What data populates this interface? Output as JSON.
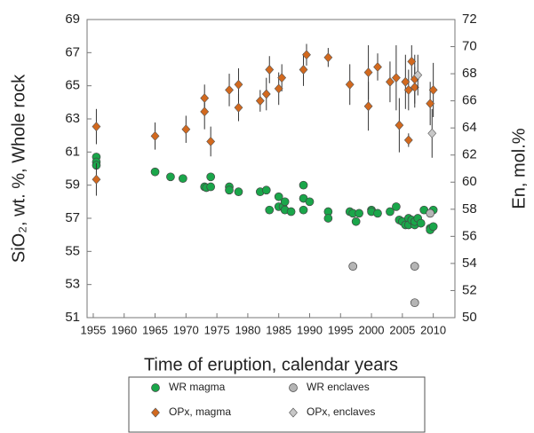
{
  "chart_data": {
    "type": "scatter",
    "x_label": "Time of eruption, calendar years",
    "y_label": "SiO₂, wt. %, Whole rock",
    "y2_label": "En, mol.%",
    "xlim": [
      1954,
      2013.5
    ],
    "xticks": [
      1955,
      1960,
      1965,
      1970,
      1975,
      1980,
      1985,
      1990,
      1995,
      2000,
      2005,
      2010
    ],
    "ylim": [
      51,
      69
    ],
    "yticks": [
      51,
      53,
      55,
      57,
      59,
      61,
      63,
      65,
      67,
      69
    ],
    "y2lim": [
      50,
      72
    ],
    "y2ticks": [
      50,
      52,
      54,
      56,
      58,
      60,
      62,
      64,
      66,
      68,
      70,
      72
    ],
    "series": [
      {
        "name": "WR magma",
        "color": "#1aa64a",
        "marker": "circle",
        "axis": "y",
        "x": [
          1955.5,
          1955.5,
          1955.5,
          1965,
          1967.5,
          1969.5,
          1973,
          1973.3,
          1974,
          1974,
          1977,
          1977,
          1978.5,
          1982,
          1983,
          1983.5,
          1985,
          1985,
          1985.7,
          1986,
          1986,
          1987,
          1989,
          1989,
          1989,
          1990,
          1993,
          1993,
          1996.5,
          1997,
          1997.5,
          1998,
          2000,
          2000,
          2001,
          2003,
          2004,
          2004.5,
          2005,
          2005.5,
          2006,
          2006,
          2006.5,
          2007,
          2007,
          2007.5,
          2008,
          2008.5,
          2009.5,
          2009.5,
          2010,
          2010
        ],
        "values": [
          60.7,
          60.4,
          60.2,
          59.8,
          59.5,
          59.4,
          58.9,
          58.85,
          59.5,
          58.9,
          58.9,
          58.7,
          58.6,
          58.6,
          58.7,
          57.5,
          58.3,
          57.7,
          57.7,
          58.0,
          57.5,
          57.4,
          59.0,
          58.2,
          57.5,
          58.0,
          57.4,
          57.0,
          57.4,
          57.3,
          56.8,
          57.3,
          57.5,
          57.4,
          57.3,
          57.4,
          57.7,
          56.9,
          56.8,
          56.6,
          57.0,
          56.6,
          56.9,
          56.6,
          56.8,
          57.0,
          56.7,
          57.5,
          56.4,
          56.3,
          56.5,
          57.5
        ]
      },
      {
        "name": "WR enclaves",
        "color": "#b5b5b5",
        "marker": "circle",
        "axis": "y",
        "x": [
          1997,
          2007,
          2007,
          2009.5
        ],
        "values": [
          54.1,
          54.1,
          51.9,
          57.3
        ]
      },
      {
        "name": "OPx, magma",
        "color": "#d2691e",
        "marker": "diamond",
        "axis": "y2",
        "x": [
          1955.5,
          1955.5,
          1965,
          1970,
          1973,
          1973,
          1974,
          1977,
          1978.5,
          1978.5,
          1982,
          1983,
          1983.5,
          1985,
          1985.5,
          1989,
          1989.5,
          1993,
          1996.5,
          1999.5,
          1999.5,
          2001,
          2003,
          2004,
          2004.5,
          2005.5,
          2006,
          2006,
          2006.5,
          2007,
          2007,
          2009.5,
          2010
        ],
        "values": [
          64.1,
          60.2,
          63.4,
          63.9,
          65.2,
          66.2,
          63.0,
          66.8,
          67.2,
          65.5,
          66.0,
          66.5,
          68.3,
          66.9,
          67.7,
          68.3,
          69.4,
          69.2,
          67.2,
          68.1,
          65.6,
          68.5,
          67.4,
          67.7,
          64.2,
          67.4,
          66.8,
          63.1,
          68.9,
          67.0,
          67.6,
          65.8,
          66.8
        ],
        "errors": [
          1.3,
          1.2,
          1.0,
          1.0,
          1.3,
          1.0,
          1.1,
          1.2,
          1.2,
          1.0,
          0.8,
          1.2,
          1.0,
          1.2,
          1.0,
          1.2,
          0.8,
          0.7,
          1.5,
          2.0,
          1.8,
          1.0,
          1.5,
          2.4,
          2.0,
          2.0,
          1.5,
          0.5,
          1.2,
          1.5,
          1.8,
          1.6,
          2.0
        ]
      },
      {
        "name": "OPx, enclaves",
        "color": "#c8c8c8",
        "marker": "diamond",
        "axis": "y2",
        "x": [
          2007.5,
          2009.8
        ],
        "values": [
          67.9,
          63.6
        ],
        "errors": [
          1.5,
          1.8
        ]
      }
    ]
  }
}
